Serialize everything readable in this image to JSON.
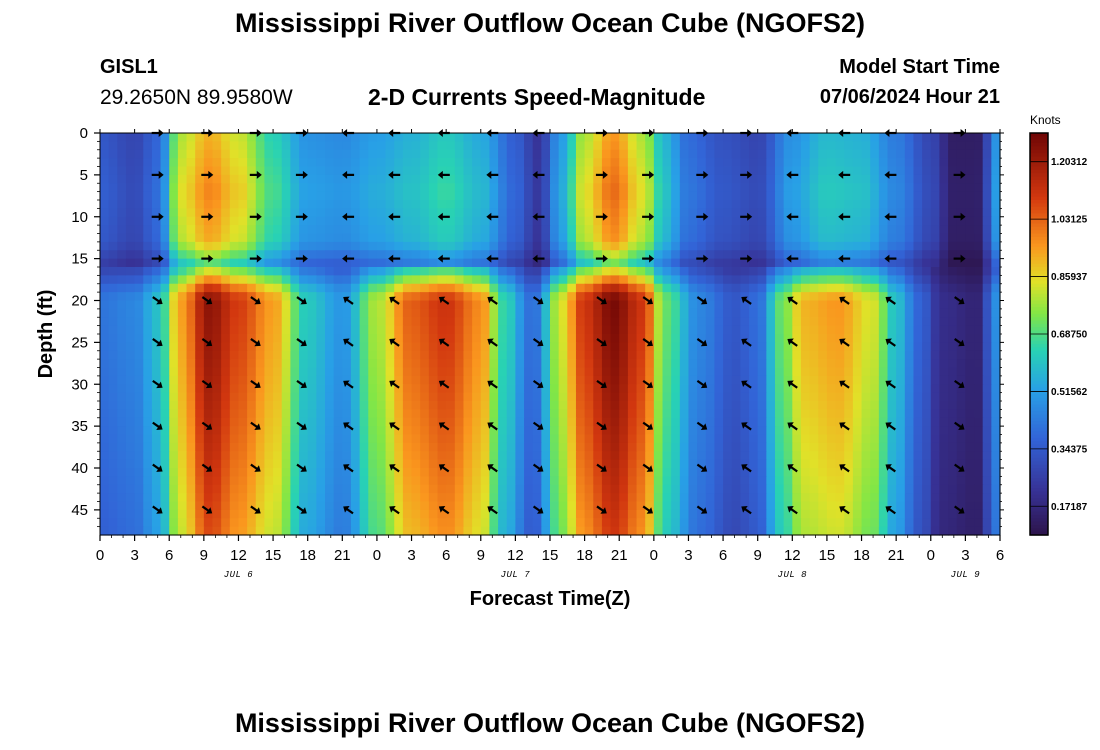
{
  "header": {
    "title": "Mississippi River Outflow Ocean Cube (NGOFS2)",
    "station": "GISL1",
    "coordinates": "29.2650N  89.9580W",
    "subtitle": "2-D Currents Speed-Magnitude",
    "start_label": "Model Start Time",
    "start_value": "07/06/2024 Hour 21"
  },
  "footer": {
    "title": "Mississippi River Outflow Ocean Cube (NGOFS2)"
  },
  "chart_data": {
    "type": "heatmap",
    "title": "2-D Currents Speed-Magnitude",
    "xlabel": "Forecast Time(Z)",
    "ylabel": "Depth (ft)",
    "xlim_hours": [
      0,
      78
    ],
    "ylim_ft": [
      0,
      48
    ],
    "x_tick_hours": [
      0,
      3,
      6,
      9,
      12,
      15,
      18,
      21,
      24,
      27,
      30,
      33,
      36,
      39,
      42,
      45,
      48,
      51,
      54,
      57,
      60,
      63,
      66,
      69,
      72,
      75,
      78
    ],
    "x_tick_labels": [
      "0",
      "3",
      "6",
      "9",
      "12",
      "15",
      "18",
      "21",
      "0",
      "3",
      "6",
      "9",
      "12",
      "15",
      "18",
      "21",
      "0",
      "3",
      "6",
      "9",
      "12",
      "15",
      "18",
      "21",
      "0",
      "3",
      "6"
    ],
    "y_ticks": [
      0,
      5,
      10,
      15,
      20,
      25,
      30,
      35,
      40,
      45
    ],
    "y_tick_labels": [
      "0",
      "5",
      "10",
      "15",
      "20",
      "25",
      "30",
      "35",
      "40",
      "45"
    ],
    "date_labels": [
      {
        "text": "JUL 6",
        "hour": 12
      },
      {
        "text": "JUL 7",
        "hour": 36
      },
      {
        "text": "JUL 8",
        "hour": 60
      },
      {
        "text": "JUL 9",
        "hour": 75
      }
    ],
    "colorbar": {
      "unit": "Knots",
      "min": 0.0859,
      "max": 1.289,
      "ticks": [
        1.20312,
        1.03125,
        0.85937,
        0.6875,
        0.51562,
        0.34375,
        0.17187
      ],
      "tick_labels": [
        "1.20312",
        "1.03125",
        "0.85937",
        "0.68750",
        "0.51562",
        "0.34375",
        "0.17187"
      ]
    },
    "layers": [
      {
        "name": "upper",
        "depth_range_ft": [
          0,
          16
        ]
      },
      {
        "name": "lower",
        "depth_range_ft": [
          16,
          48
        ]
      }
    ],
    "speed_upper": [
      {
        "hour": 0,
        "knots": 0.36
      },
      {
        "hour": 3,
        "knots": 0.3
      },
      {
        "hour": 5,
        "knots": 0.4
      },
      {
        "hour": 7,
        "knots": 0.85
      },
      {
        "hour": 9.5,
        "knots": 0.98
      },
      {
        "hour": 12,
        "knots": 0.88
      },
      {
        "hour": 15,
        "knots": 0.68
      },
      {
        "hour": 18,
        "knots": 0.52
      },
      {
        "hour": 21,
        "knots": 0.5
      },
      {
        "hour": 24,
        "knots": 0.55
      },
      {
        "hour": 27,
        "knots": 0.6
      },
      {
        "hour": 30,
        "knots": 0.66
      },
      {
        "hour": 33,
        "knots": 0.58
      },
      {
        "hour": 36,
        "knots": 0.38
      },
      {
        "hour": 38,
        "knots": 0.24
      },
      {
        "hour": 40,
        "knots": 0.55
      },
      {
        "hour": 42,
        "knots": 0.85
      },
      {
        "hour": 44.5,
        "knots": 1.02
      },
      {
        "hour": 47,
        "knots": 0.85
      },
      {
        "hour": 49,
        "knots": 0.6
      },
      {
        "hour": 51,
        "knots": 0.42
      },
      {
        "hour": 54,
        "knots": 0.34
      },
      {
        "hour": 57,
        "knots": 0.3
      },
      {
        "hour": 60,
        "knots": 0.52
      },
      {
        "hour": 63,
        "knots": 0.62
      },
      {
        "hour": 66,
        "knots": 0.6
      },
      {
        "hour": 69,
        "knots": 0.46
      },
      {
        "hour": 72,
        "knots": 0.3
      },
      {
        "hour": 74,
        "knots": 0.14
      },
      {
        "hour": 76,
        "knots": 0.14
      },
      {
        "hour": 78,
        "knots": 0.55
      }
    ],
    "speed_lower": [
      {
        "hour": 0,
        "knots": 0.42
      },
      {
        "hour": 3,
        "knots": 0.46
      },
      {
        "hour": 5,
        "knots": 0.6
      },
      {
        "hour": 7,
        "knots": 0.95
      },
      {
        "hour": 9.5,
        "knots": 1.24
      },
      {
        "hour": 12,
        "knots": 1.1
      },
      {
        "hour": 15,
        "knots": 0.95
      },
      {
        "hour": 18,
        "knots": 0.62
      },
      {
        "hour": 21,
        "knots": 0.5
      },
      {
        "hour": 24,
        "knots": 0.8
      },
      {
        "hour": 27,
        "knots": 1.05
      },
      {
        "hour": 30,
        "knots": 1.12
      },
      {
        "hour": 33,
        "knots": 0.98
      },
      {
        "hour": 35,
        "knots": 0.66
      },
      {
        "hour": 37.5,
        "knots": 0.4
      },
      {
        "hour": 40,
        "knots": 0.85
      },
      {
        "hour": 42,
        "knots": 1.12
      },
      {
        "hour": 44.5,
        "knots": 1.28
      },
      {
        "hour": 47,
        "knots": 1.12
      },
      {
        "hour": 49,
        "knots": 0.72
      },
      {
        "hour": 52,
        "knots": 0.46
      },
      {
        "hour": 55,
        "knots": 0.34
      },
      {
        "hour": 57,
        "knots": 0.4
      },
      {
        "hour": 59,
        "knots": 0.72
      },
      {
        "hour": 61,
        "knots": 0.92
      },
      {
        "hour": 64,
        "knots": 0.96
      },
      {
        "hour": 67,
        "knots": 0.84
      },
      {
        "hour": 69,
        "knots": 0.6
      },
      {
        "hour": 71,
        "knots": 0.38
      },
      {
        "hour": 73,
        "knots": 0.2
      },
      {
        "hour": 76,
        "knots": 0.16
      },
      {
        "hour": 77.5,
        "knots": 0.42
      },
      {
        "hour": 78,
        "knots": 0.85
      }
    ],
    "vector_depths_ft": [
      0,
      5,
      10,
      15,
      20,
      25,
      30,
      35,
      40,
      45
    ],
    "vectors": [
      {
        "hour": 5,
        "dir_upper": "E",
        "dir_lower": "SE"
      },
      {
        "hour": 9.3,
        "dir_upper": "E",
        "dir_lower": "SE"
      },
      {
        "hour": 13.5,
        "dir_upper": "E",
        "dir_lower": "SE"
      },
      {
        "hour": 17.5,
        "dir_upper": "E",
        "dir_lower": "SE"
      },
      {
        "hour": 21.5,
        "dir_upper": "W",
        "dir_lower": "NW"
      },
      {
        "hour": 25.5,
        "dir_upper": "W",
        "dir_lower": "NW"
      },
      {
        "hour": 29.8,
        "dir_upper": "W",
        "dir_lower": "NW"
      },
      {
        "hour": 34,
        "dir_upper": "W",
        "dir_lower": "NW"
      },
      {
        "hour": 38,
        "dir_upper": "W",
        "dir_lower": "SE"
      },
      {
        "hour": 43.5,
        "dir_upper": "E",
        "dir_lower": "SE"
      },
      {
        "hour": 47.5,
        "dir_upper": "E",
        "dir_lower": "SE"
      },
      {
        "hour": 52.2,
        "dir_upper": "E",
        "dir_lower": "SE"
      },
      {
        "hour": 56,
        "dir_upper": "E",
        "dir_lower": "NW"
      },
      {
        "hour": 60,
        "dir_upper": "W",
        "dir_lower": "NW"
      },
      {
        "hour": 64.5,
        "dir_upper": "W",
        "dir_lower": "NW"
      },
      {
        "hour": 68.5,
        "dir_upper": "W",
        "dir_lower": "NW"
      },
      {
        "hour": 74.5,
        "dir_upper": "E",
        "dir_lower": "SE"
      }
    ]
  }
}
